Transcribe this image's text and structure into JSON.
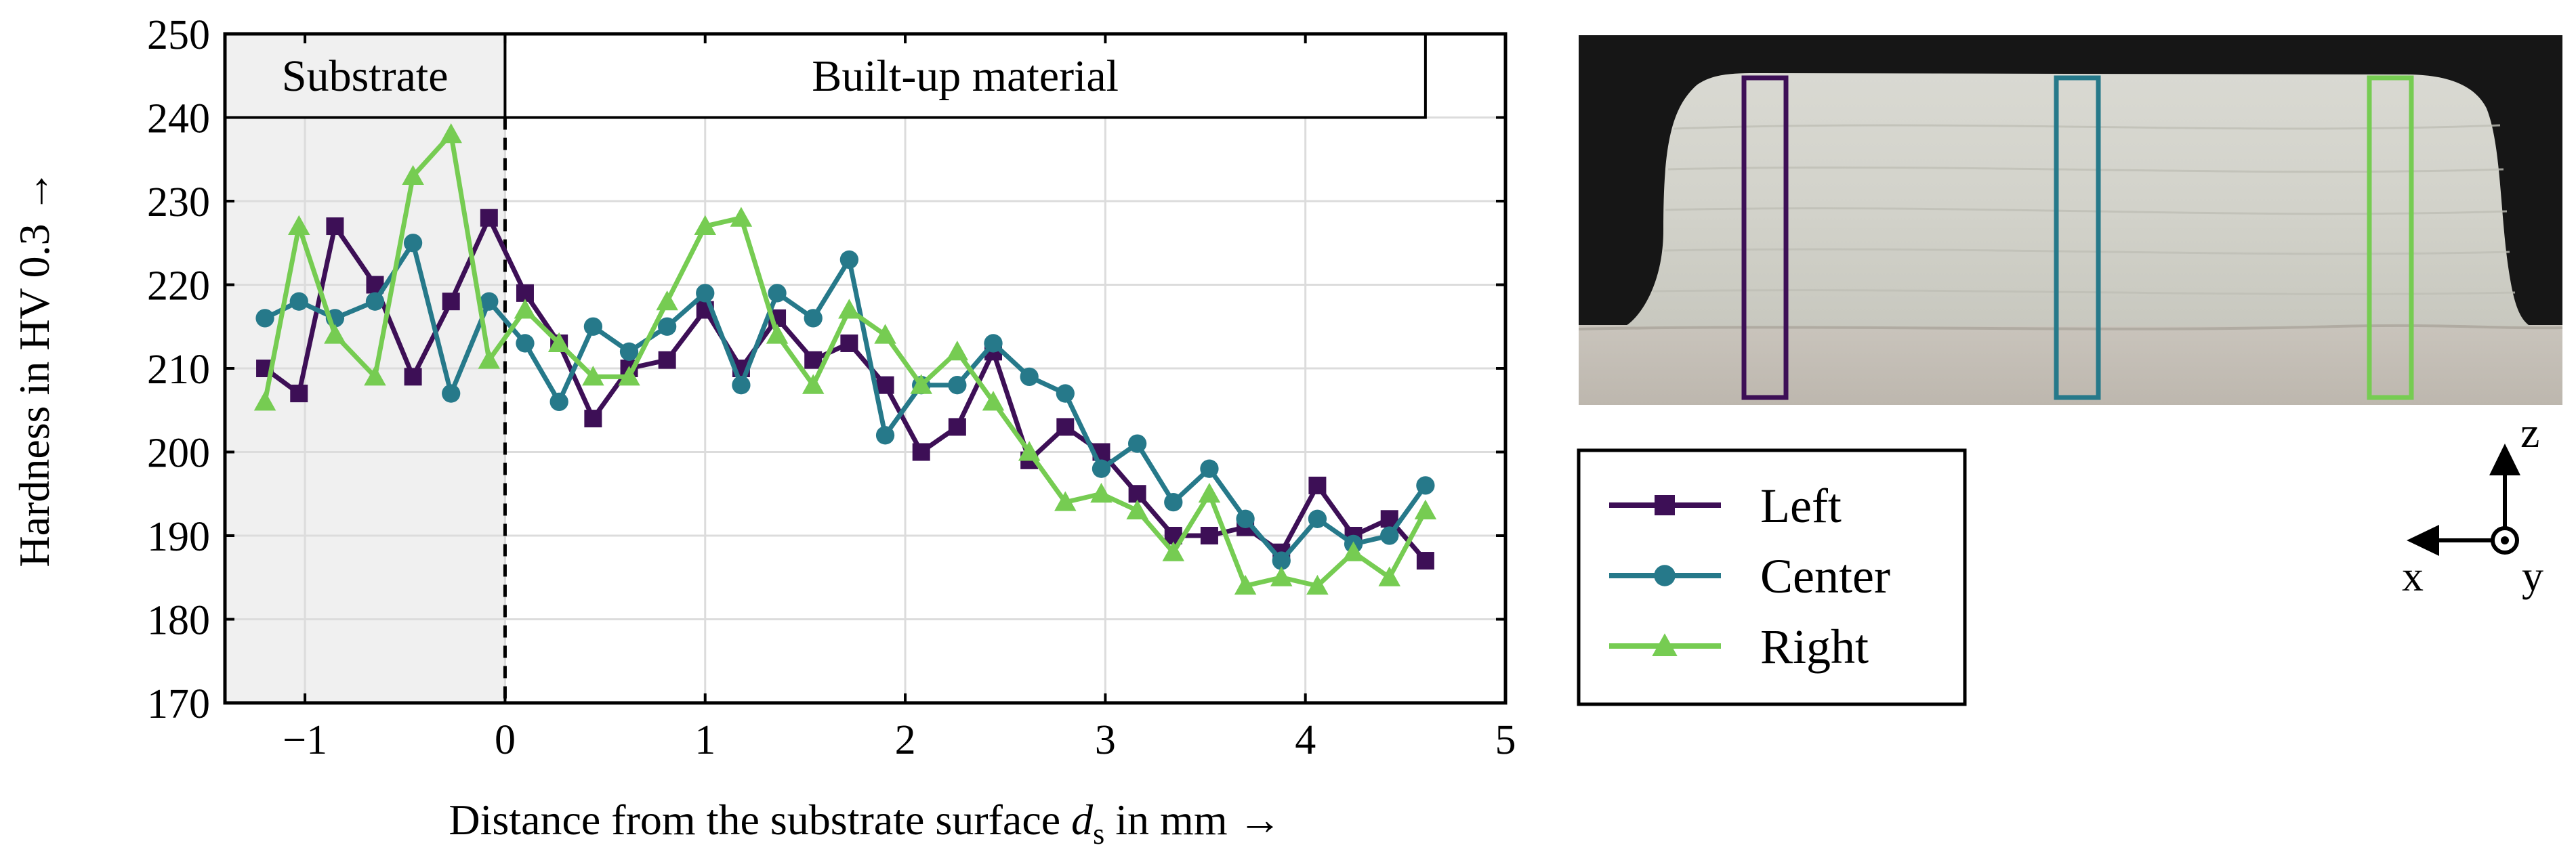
{
  "chart_data": {
    "type": "line",
    "xlabel": "Distance from the substrate surface",
    "xlabel_symbol": "d",
    "xlabel_subscript": "s",
    "xlabel_unit": "in mm →",
    "ylabel": "Hardness in HV 0.3 →",
    "xlim": [
      -1.4,
      5
    ],
    "ylim": [
      170,
      250
    ],
    "x_ticks": [
      -1,
      0,
      1,
      2,
      3,
      4,
      5
    ],
    "x_tick_labels": [
      "−1",
      "0",
      "1",
      "2",
      "3",
      "4",
      "5"
    ],
    "y_ticks": [
      170,
      180,
      190,
      200,
      210,
      220,
      230,
      240,
      250
    ],
    "y_tick_labels": [
      "170",
      "180",
      "190",
      "200",
      "210",
      "220",
      "230",
      "240",
      "250"
    ],
    "grid": true,
    "regions": [
      {
        "label": "Substrate",
        "from": -1.4,
        "to": 0,
        "shaded": true
      },
      {
        "label": "Built-up material",
        "from": 0,
        "to": 4.6,
        "shaded": false
      }
    ],
    "x": [
      -1.2,
      -1.03,
      -0.85,
      -0.65,
      -0.46,
      -0.27,
      -0.08,
      0.1,
      0.27,
      0.44,
      0.62,
      0.81,
      1.0,
      1.18,
      1.36,
      1.54,
      1.72,
      1.9,
      2.08,
      2.26,
      2.44,
      2.62,
      2.8,
      2.98,
      3.16,
      3.34,
      3.52,
      3.7,
      3.88,
      4.06,
      4.24,
      4.42,
      4.6
    ],
    "series": [
      {
        "name": "Left",
        "marker": "square",
        "color": "#3d0f56",
        "values": [
          210,
          207,
          227,
          220,
          209,
          218,
          228,
          219,
          213,
          204,
          210,
          211,
          217,
          210,
          216,
          211,
          213,
          208,
          200,
          203,
          212,
          199,
          203,
          200,
          195,
          190,
          190,
          191,
          188,
          196,
          190,
          192,
          187
        ]
      },
      {
        "name": "Center",
        "marker": "circle",
        "color": "#26798a",
        "values": [
          216,
          218,
          216,
          218,
          225,
          207,
          218,
          213,
          206,
          215,
          212,
          215,
          219,
          208,
          219,
          216,
          223,
          202,
          208,
          208,
          213,
          209,
          207,
          198,
          201,
          194,
          198,
          192,
          187,
          192,
          189,
          190,
          196
        ]
      },
      {
        "name": "Right",
        "marker": "triangle",
        "color": "#76cc52",
        "values": [
          206,
          227,
          214,
          209,
          233,
          238,
          211,
          217,
          213,
          209,
          209,
          218,
          227,
          228,
          214,
          208,
          217,
          214,
          208,
          212,
          206,
          200,
          194,
          195,
          193,
          188,
          195,
          184,
          185,
          184,
          188,
          185,
          193
        ]
      }
    ]
  },
  "photo": {
    "boxes": [
      {
        "name": "Left",
        "color": "#3d0f56"
      },
      {
        "name": "Center",
        "color": "#26798a"
      },
      {
        "name": "Right",
        "color": "#76cc52"
      }
    ]
  },
  "coords": {
    "z": "z",
    "x": "x",
    "y": "y"
  }
}
